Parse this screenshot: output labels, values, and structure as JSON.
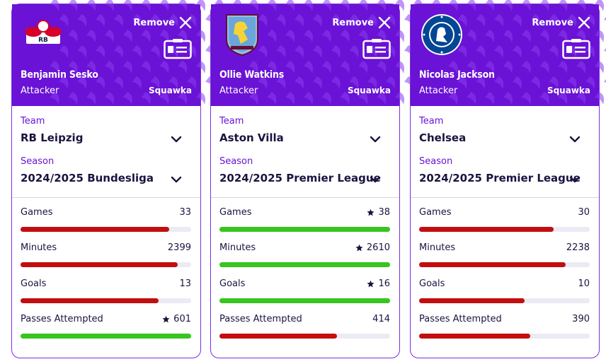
{
  "ui": {
    "remove_label": "Remove",
    "team_label": "Team",
    "season_label": "Season",
    "source_label": "Squawka"
  },
  "colors": {
    "header": "#6a12d6",
    "best": "#37c51e",
    "normal": "#c20e0e",
    "track": "#eceaf4"
  },
  "cards": [
    {
      "name": "Benjamin Sesko",
      "position": "Attacker",
      "team": "RB Leipzig",
      "season": "2024/2025 Bundesliga",
      "badge": "rb-leipzig-badge",
      "stats": [
        {
          "label": "Games",
          "value": "33",
          "fill": 0.87,
          "best": false
        },
        {
          "label": "Minutes",
          "value": "2399",
          "fill": 0.92,
          "best": false
        },
        {
          "label": "Goals",
          "value": "13",
          "fill": 0.81,
          "best": false
        },
        {
          "label": "Passes Attempted",
          "value": "601",
          "fill": 1.0,
          "best": true
        }
      ]
    },
    {
      "name": "Ollie Watkins",
      "position": "Attacker",
      "team": "Aston Villa",
      "season": "2024/2025 Premier League",
      "badge": "aston-villa-badge",
      "stats": [
        {
          "label": "Games",
          "value": "38",
          "fill": 1.0,
          "best": true
        },
        {
          "label": "Minutes",
          "value": "2610",
          "fill": 1.0,
          "best": true
        },
        {
          "label": "Goals",
          "value": "16",
          "fill": 1.0,
          "best": true
        },
        {
          "label": "Passes Attempted",
          "value": "414",
          "fill": 0.69,
          "best": false
        }
      ]
    },
    {
      "name": "Nicolas Jackson",
      "position": "Attacker",
      "team": "Chelsea",
      "season": "2024/2025 Premier League",
      "badge": "chelsea-badge",
      "stats": [
        {
          "label": "Games",
          "value": "30",
          "fill": 0.79,
          "best": false
        },
        {
          "label": "Minutes",
          "value": "2238",
          "fill": 0.86,
          "best": false
        },
        {
          "label": "Goals",
          "value": "10",
          "fill": 0.62,
          "best": false
        },
        {
          "label": "Passes Attempted",
          "value": "390",
          "fill": 0.65,
          "best": false
        }
      ]
    }
  ]
}
